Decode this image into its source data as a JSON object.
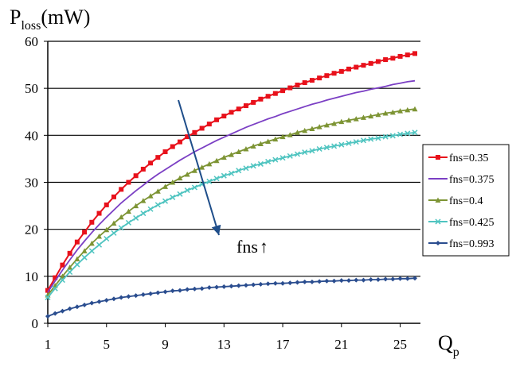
{
  "chart_data": {
    "type": "line",
    "title": "",
    "ylabel": {
      "main": "P",
      "sub": "loss",
      "unit": "(mW)"
    },
    "xlabel": {
      "main": "Q",
      "sub": "p"
    },
    "xlim": [
      1,
      26
    ],
    "ylim": [
      0,
      60
    ],
    "x_ticks": [
      "1",
      "5",
      "9",
      "13",
      "17",
      "21",
      "25"
    ],
    "y_ticks": [
      "0",
      "10",
      "20",
      "30",
      "40",
      "50",
      "60"
    ],
    "grid": "horizontal",
    "legend_position": "right",
    "x": [
      1,
      1.5,
      2,
      2.5,
      3,
      3.5,
      4,
      4.5,
      5,
      5.5,
      6,
      6.5,
      7,
      7.5,
      8,
      8.5,
      9,
      9.5,
      10,
      10.5,
      11,
      11.5,
      12,
      12.5,
      13,
      13.5,
      14,
      14.5,
      15,
      15.5,
      16,
      16.5,
      17,
      17.5,
      18,
      18.5,
      19,
      19.5,
      20,
      20.5,
      21,
      21.5,
      22,
      22.5,
      23,
      23.5,
      24,
      24.5,
      25,
      25.5,
      26
    ],
    "series": [
      {
        "name": "fns=0.35",
        "color": "#e8111b",
        "marker": "square",
        "values": [
          7.0,
          9.7,
          12.4,
          14.9,
          17.3,
          19.4,
          21.5,
          23.4,
          25.2,
          26.9,
          28.5,
          30.0,
          31.4,
          32.8,
          34.1,
          35.3,
          36.5,
          37.6,
          38.6,
          39.7,
          40.6,
          41.5,
          42.4,
          43.3,
          44.1,
          44.9,
          45.6,
          46.3,
          47.0,
          47.7,
          48.3,
          48.9,
          49.5,
          50.1,
          50.7,
          51.2,
          51.7,
          52.2,
          52.7,
          53.2,
          53.6,
          54.1,
          54.5,
          54.9,
          55.3,
          55.7,
          56.1,
          56.4,
          56.8,
          57.1,
          57.4
        ]
      },
      {
        "name": "fns=0.375",
        "color": "#7b3fc4",
        "marker": "none",
        "values": [
          6.6,
          9.0,
          11.3,
          13.5,
          15.6,
          17.5,
          19.3,
          21.0,
          22.6,
          24.1,
          25.6,
          26.9,
          28.2,
          29.4,
          30.6,
          31.7,
          32.7,
          33.7,
          34.7,
          35.6,
          36.5,
          37.3,
          38.1,
          38.9,
          39.6,
          40.3,
          41.0,
          41.7,
          42.3,
          42.9,
          43.5,
          44.0,
          44.6,
          45.1,
          45.6,
          46.1,
          46.6,
          47.0,
          47.5,
          47.9,
          48.3,
          48.7,
          49.1,
          49.4,
          49.8,
          50.1,
          50.4,
          50.8,
          51.1,
          51.4,
          51.6
        ]
      },
      {
        "name": "fns=0.4",
        "color": "#7d9434",
        "marker": "triangle",
        "values": [
          6.0,
          8.0,
          10.0,
          11.9,
          13.7,
          15.4,
          17.0,
          18.5,
          19.9,
          21.3,
          22.6,
          23.8,
          25.0,
          26.1,
          27.1,
          28.1,
          29.1,
          30.0,
          30.9,
          31.7,
          32.5,
          33.2,
          33.9,
          34.6,
          35.3,
          35.9,
          36.5,
          37.1,
          37.7,
          38.2,
          38.7,
          39.2,
          39.7,
          40.1,
          40.6,
          41.0,
          41.4,
          41.8,
          42.2,
          42.5,
          42.9,
          43.2,
          43.5,
          43.8,
          44.1,
          44.4,
          44.7,
          44.9,
          45.2,
          45.4,
          45.6
        ]
      },
      {
        "name": "fns=0.425",
        "color": "#4fc4c0",
        "marker": "cross",
        "values": [
          5.5,
          7.4,
          9.2,
          10.9,
          12.5,
          14.0,
          15.4,
          16.7,
          18.0,
          19.2,
          20.3,
          21.4,
          22.4,
          23.4,
          24.3,
          25.2,
          26.0,
          26.8,
          27.5,
          28.3,
          28.9,
          29.6,
          30.2,
          30.8,
          31.4,
          31.9,
          32.5,
          33.0,
          33.5,
          33.9,
          34.4,
          34.8,
          35.2,
          35.6,
          36.0,
          36.4,
          36.7,
          37.1,
          37.4,
          37.7,
          38.0,
          38.3,
          38.6,
          38.9,
          39.2,
          39.4,
          39.7,
          39.9,
          40.2,
          40.4,
          40.6
        ]
      },
      {
        "name": "fns=0.993",
        "color": "#2a4d8f",
        "marker": "diamond",
        "values": [
          1.5,
          2.1,
          2.6,
          3.1,
          3.5,
          3.9,
          4.3,
          4.6,
          4.9,
          5.2,
          5.5,
          5.7,
          5.9,
          6.1,
          6.3,
          6.5,
          6.7,
          6.9,
          7.0,
          7.2,
          7.3,
          7.4,
          7.6,
          7.7,
          7.8,
          7.9,
          8.0,
          8.1,
          8.2,
          8.3,
          8.4,
          8.5,
          8.5,
          8.6,
          8.7,
          8.8,
          8.8,
          8.9,
          9.0,
          9.0,
          9.1,
          9.1,
          9.2,
          9.2,
          9.3,
          9.3,
          9.4,
          9.4,
          9.5,
          9.5,
          9.6
        ]
      }
    ],
    "annotation": {
      "text": "fns",
      "arrow_glyph": "↑",
      "color": "#1f4e8a"
    }
  }
}
